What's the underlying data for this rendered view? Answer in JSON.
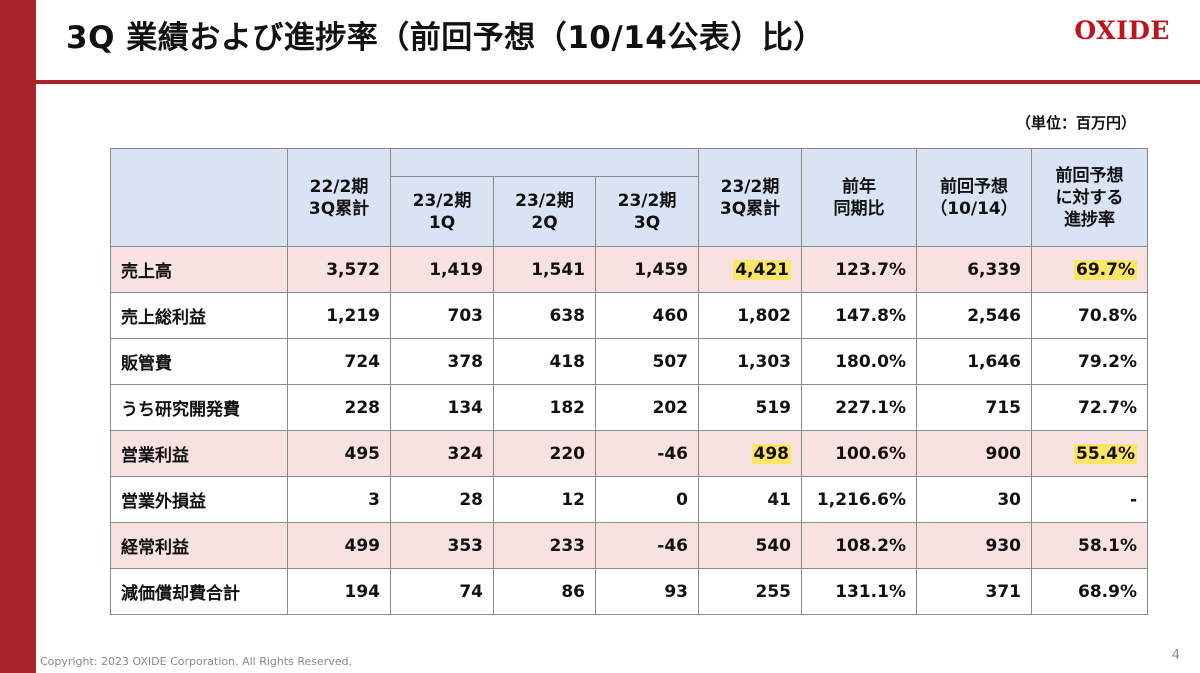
{
  "header": {
    "title": "3Q 業績および進捗率（前回予想（10/14公表）比）",
    "logo": "OXIDE"
  },
  "unit_note": "（単位：百万円）",
  "table": {
    "col_headers": {
      "prev_cumulative": "22/2期\n3Q累計",
      "q1": "23/2期\n1Q",
      "q2": "23/2期\n2Q",
      "q3": "23/2期\n3Q",
      "cumulative": "23/2期\n3Q累計",
      "yoy": "前年\n同期比",
      "forecast": "前回予想\n（10/14）",
      "progress": "前回予想\nに対する\n進捗率"
    },
    "rows": [
      {
        "label": "売上高",
        "style": "pink",
        "cells": [
          "3,572",
          "1,419",
          "1,541",
          "1,459",
          "4,421",
          "123.7%",
          "6,339",
          "69.7%"
        ],
        "highlight": [
          4,
          7
        ]
      },
      {
        "label": "売上総利益",
        "style": "white",
        "cells": [
          "1,219",
          "703",
          "638",
          "460",
          "1,802",
          "147.8%",
          "2,546",
          "70.8%"
        ],
        "highlight": []
      },
      {
        "label": "販管費",
        "style": "white",
        "cells": [
          "724",
          "378",
          "418",
          "507",
          "1,303",
          "180.0%",
          "1,646",
          "79.2%"
        ],
        "highlight": []
      },
      {
        "label": "うち研究開発費",
        "style": "white",
        "cells": [
          "228",
          "134",
          "182",
          "202",
          "519",
          "227.1%",
          "715",
          "72.7%"
        ],
        "highlight": []
      },
      {
        "label": "営業利益",
        "style": "pink",
        "cells": [
          "495",
          "324",
          "220",
          "-46",
          "498",
          "100.6%",
          "900",
          "55.4%"
        ],
        "highlight": [
          4,
          7
        ]
      },
      {
        "label": "営業外損益",
        "style": "white",
        "cells": [
          "3",
          "28",
          "12",
          "0",
          "41",
          "1,216.6%",
          "30",
          "-"
        ],
        "highlight": []
      },
      {
        "label": "経常利益",
        "style": "pink",
        "cells": [
          "499",
          "353",
          "233",
          "-46",
          "540",
          "108.2%",
          "930",
          "58.1%"
        ],
        "highlight": []
      },
      {
        "label": "減価償却費合計",
        "style": "white",
        "cells": [
          "194",
          "74",
          "86",
          "93",
          "255",
          "131.1%",
          "371",
          "68.9%"
        ],
        "highlight": []
      }
    ]
  },
  "footer": {
    "copyright": "Copyright: 2023 OXIDE Corporation. All Rights Reserved.",
    "page_number": "4"
  },
  "colors": {
    "brand_red": "#a8232a",
    "logo_red": "#c0141c",
    "header_blue": "#8eaadb",
    "header_light_blue": "#dae3f3",
    "row_pink": "#f7e1e1",
    "highlight_yellow": "#ffe566"
  }
}
